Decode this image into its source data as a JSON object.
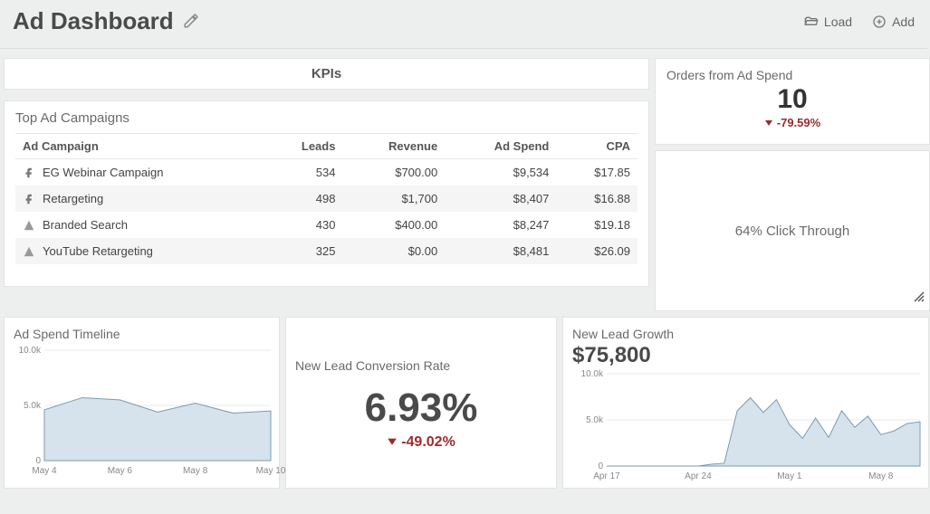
{
  "header": {
    "title": "Ad Dashboard",
    "actions": {
      "load": "Load",
      "add": "Add"
    }
  },
  "kpi_section_title": "KPIs",
  "campaigns": {
    "title": "Top Ad Campaigns",
    "columns": [
      "Ad Campaign",
      "Leads",
      "Revenue",
      "Ad Spend",
      "CPA"
    ],
    "rows": [
      {
        "platform": "facebook",
        "name": "EG Webinar Campaign",
        "leads": "534",
        "revenue": "$700.00",
        "spend": "$9,534",
        "cpa": "$17.85"
      },
      {
        "platform": "facebook",
        "name": "Retargeting",
        "leads": "498",
        "revenue": "$1,700",
        "spend": "$8,407",
        "cpa": "$16.88"
      },
      {
        "platform": "adwords",
        "name": "Branded Search",
        "leads": "430",
        "revenue": "$400.00",
        "spend": "$8,247",
        "cpa": "$19.18"
      },
      {
        "platform": "adwords",
        "name": "YouTube Retargeting",
        "leads": "325",
        "revenue": "$0.00",
        "spend": "$8,481",
        "cpa": "$26.09"
      }
    ]
  },
  "orders_card": {
    "title": "Orders from Ad Spend",
    "value": "10",
    "delta": "-79.59%"
  },
  "click_through": {
    "text": "64% Click Through"
  },
  "ad_spend_timeline": {
    "title": "Ad Spend Timeline",
    "type": "area",
    "ylim": [
      0,
      10000
    ],
    "ytick_labels": [
      "0",
      "5.0k",
      "10.0k"
    ],
    "ytick_values": [
      0,
      5000,
      10000
    ],
    "x_labels": [
      "May 4",
      "May 6",
      "May 8",
      "May 10"
    ],
    "x_positions": [
      0,
      2,
      4,
      6
    ],
    "series_x": [
      0,
      1,
      2,
      3,
      4,
      5,
      6
    ],
    "series_y": [
      4600,
      5700,
      5500,
      4400,
      5200,
      4300,
      4500
    ],
    "fill_color": "#d6e3ec",
    "line_color": "#7a9bb0",
    "grid_color": "#e8e8e8",
    "text_color": "#888888"
  },
  "conversion": {
    "title": "New Lead Conversion Rate",
    "value": "6.93%",
    "delta": "-49.02%",
    "delta_color": "#9c2b2b"
  },
  "lead_growth": {
    "title": "New Lead Growth",
    "amount": "$75,800",
    "type": "area",
    "ylim": [
      0,
      10000
    ],
    "ytick_labels": [
      "0",
      "5.0k",
      "10.0k"
    ],
    "ytick_values": [
      0,
      5000,
      10000
    ],
    "x_labels": [
      "Apr 17",
      "Apr 24",
      "May 1",
      "May 8"
    ],
    "x_positions": [
      0,
      7,
      14,
      21
    ],
    "series_x": [
      0,
      1,
      2,
      3,
      4,
      5,
      6,
      7,
      8,
      9,
      10,
      11,
      12,
      13,
      14,
      15,
      16,
      17,
      18,
      19,
      20,
      21,
      22,
      23,
      24
    ],
    "series_y": [
      0,
      0,
      0,
      0,
      0,
      0,
      0,
      0,
      200,
      300,
      6000,
      7400,
      5800,
      7200,
      4500,
      3000,
      5200,
      3100,
      6000,
      4200,
      5400,
      3400,
      3800,
      4600,
      4800
    ],
    "fill_color": "#d6e3ec",
    "line_color": "#7a9bb0",
    "grid_color": "#e8e8e8",
    "text_color": "#888888"
  },
  "colors": {
    "page_bg": "#edeeee",
    "card_bg": "#ffffff",
    "border": "#e3e3e3",
    "text_muted": "#6a6a6a",
    "text_dark": "#4a4a4a",
    "negative": "#9c2b2b"
  }
}
